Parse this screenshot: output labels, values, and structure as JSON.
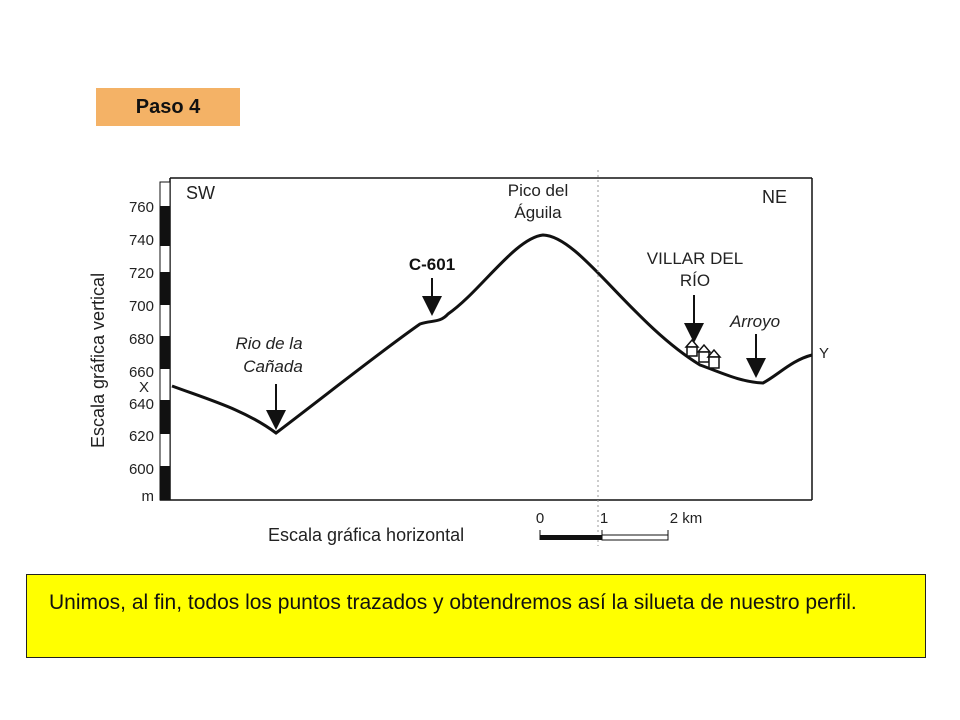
{
  "step": {
    "label": "Paso 4"
  },
  "profile": {
    "orientation": {
      "left": "SW",
      "right": "NE"
    },
    "endpoints": {
      "start": "X",
      "end": "Y"
    },
    "vertical_scale": {
      "label": "Escala gráfica vertical",
      "ticks": [
        "760",
        "740",
        "720",
        "700",
        "680",
        "660",
        "640",
        "620",
        "600"
      ],
      "unit": "m"
    },
    "horizontal_scale": {
      "label": "Escala gráfica horizontal",
      "ticks": [
        "0",
        "1",
        "2 km"
      ]
    },
    "labels": {
      "pico": [
        "Pico del",
        "Águila"
      ],
      "road": "C-601",
      "villar": [
        "VILLAR DEL",
        "RÍO"
      ],
      "arroyo": "Arroyo",
      "rio": [
        "Rio de la",
        "Cañada"
      ]
    },
    "colors": {
      "line": "#111111",
      "badge": "#f4b266",
      "caption": "#ffff00"
    }
  },
  "caption": {
    "text": "Unimos, al fin, todos los puntos trazados y obtendremos así la silueta de nuestro perfil."
  }
}
